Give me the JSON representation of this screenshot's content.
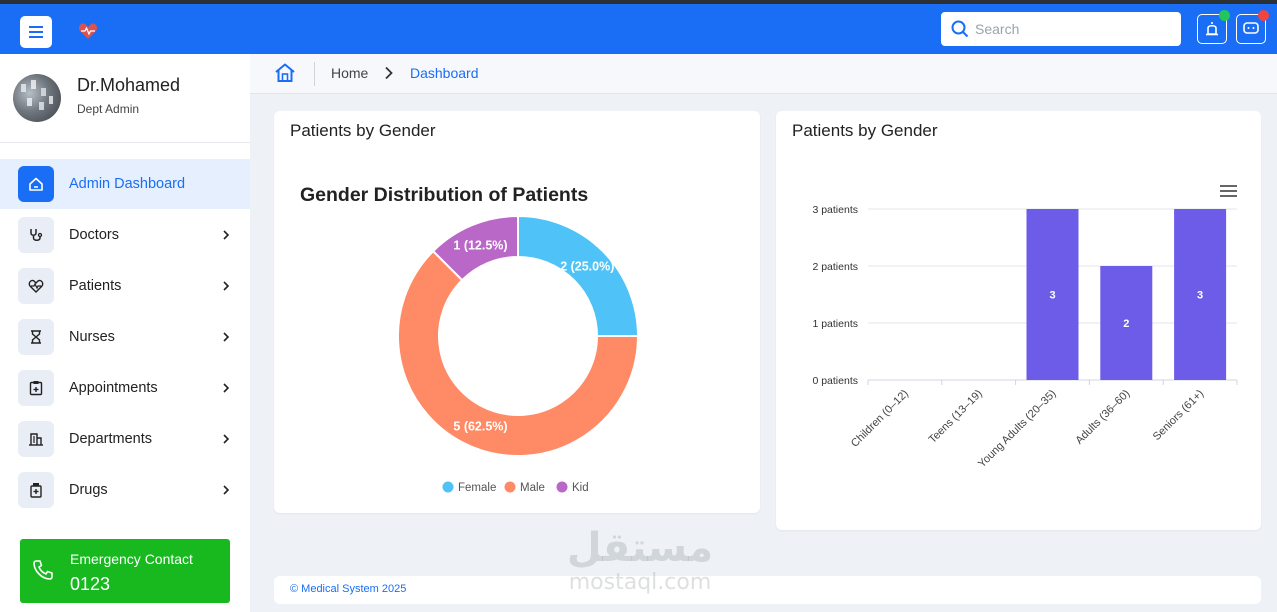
{
  "header": {
    "search_placeholder": "Search",
    "notification_dot_colors": {
      "first": "#22c55e",
      "second": "#ef4444"
    }
  },
  "profile": {
    "name": "Dr.Mohamed",
    "role": "Dept Admin"
  },
  "sidebar": {
    "items": [
      {
        "label": "Admin Dashboard",
        "icon": "home-icon",
        "active": true
      },
      {
        "label": "Doctors",
        "icon": "stethoscope-icon"
      },
      {
        "label": "Patients",
        "icon": "heart-pulse-icon"
      },
      {
        "label": "Nurses",
        "icon": "hourglass-icon"
      },
      {
        "label": "Appointments",
        "icon": "clipboard-plus-icon"
      },
      {
        "label": "Departments",
        "icon": "building-icon"
      },
      {
        "label": "Drugs",
        "icon": "medicine-bottle-icon"
      }
    ]
  },
  "emergency": {
    "label": "Emergency Contact",
    "number": "0123"
  },
  "breadcrumb": {
    "home": "Home",
    "current": "Dashboard"
  },
  "cards": {
    "left_title": "Patients by Gender",
    "right_title": "Patients by Gender"
  },
  "chart_data": [
    {
      "type": "pie",
      "title": "Gender Distribution of Patients",
      "donut": true,
      "categories": [
        "Female",
        "Male",
        "Kid"
      ],
      "values": [
        2,
        5,
        1
      ],
      "data_labels": [
        "2 (25.0%)",
        "5 (62.5%)",
        "1 (12.5%)"
      ],
      "colors": [
        "#4fc3f7",
        "#ff8a65",
        "#ba68c8"
      ],
      "legend": "bottom"
    },
    {
      "type": "bar",
      "categories": [
        "Children (0–12)",
        "Teens (13–19)",
        "Young Adults (20–35)",
        "Adults (36–60)",
        "Seniors (61+)"
      ],
      "values": [
        0,
        0,
        3,
        2,
        3
      ],
      "ytick_labels": [
        "0 patients",
        "1 patients",
        "2 patients",
        "3 patients"
      ],
      "ylim": [
        0,
        3
      ],
      "color": "#6c5ce7",
      "grid": true
    }
  ],
  "footer": {
    "text": "© Medical System 2025"
  },
  "watermark": {
    "arabic": "مستقل",
    "latin": "mostaql.com"
  }
}
